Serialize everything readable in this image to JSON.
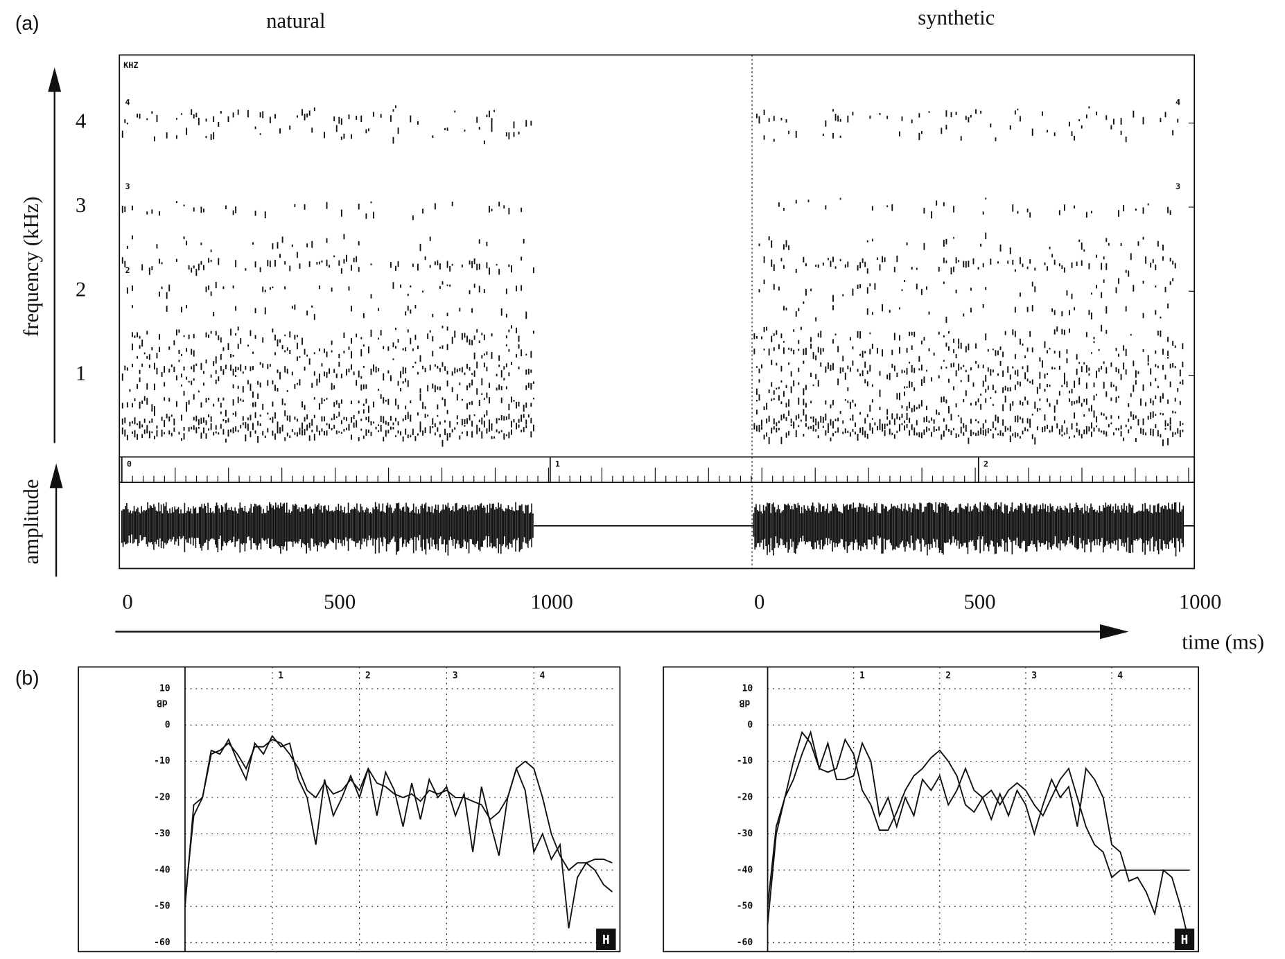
{
  "figure_a": {
    "label": "(a)",
    "panels": [
      {
        "title": "natural",
        "time_ticks": [
          0,
          500,
          1000
        ]
      },
      {
        "title": "synthetic",
        "time_ticks": [
          0,
          500,
          1000
        ]
      }
    ],
    "frequency_axis_label": "frequency (kHz)",
    "frequency_ticks": [
      1,
      2,
      3,
      4
    ],
    "amplitude_axis_label": "amplitude",
    "time_axis_label": "time (ms)",
    "spectrogram_unit": "KHZ",
    "inner_freq_marks_left": [
      4,
      3,
      2
    ],
    "inner_freq_marks_right": [
      4,
      3
    ],
    "ruler_ticks": [
      0,
      1,
      2
    ]
  },
  "figure_b": {
    "label": "(b)"
  },
  "chart_data": [
    {
      "type": "line",
      "y_label": "dB",
      "marker": "H",
      "xlim": [
        0,
        4.94
      ],
      "ylim": [
        -62,
        16
      ],
      "xticks": [
        1,
        2,
        3,
        4
      ],
      "yticks": [
        10,
        0,
        -10,
        -20,
        -30,
        -40,
        -50,
        -60
      ],
      "grid": true,
      "x": [
        0,
        0.1,
        0.2,
        0.3,
        0.4,
        0.5,
        0.6,
        0.7,
        0.8,
        0.9,
        1.0,
        1.1,
        1.2,
        1.3,
        1.4,
        1.5,
        1.6,
        1.7,
        1.8,
        1.9,
        2.0,
        2.1,
        2.2,
        2.3,
        2.4,
        2.5,
        2.6,
        2.7,
        2.8,
        2.9,
        3.0,
        3.1,
        3.2,
        3.3,
        3.4,
        3.5,
        3.6,
        3.7,
        3.8,
        3.9,
        4.0,
        4.1,
        4.2,
        4.3,
        4.4,
        4.5,
        4.6,
        4.7,
        4.8,
        4.9
      ],
      "series": [
        {
          "color": "#111111",
          "values": [
            -50,
            -22,
            -20,
            -7,
            -8,
            -4,
            -10,
            -15,
            -5,
            -8,
            -3,
            -6,
            -5,
            -15,
            -20,
            -33,
            -15,
            -25,
            -20,
            -14,
            -20,
            -12,
            -25,
            -13,
            -18,
            -28,
            -16,
            -26,
            -15,
            -20,
            -17,
            -25,
            -19,
            -35,
            -17,
            -27,
            -36,
            -20,
            -12,
            -18,
            -35,
            -30,
            -37,
            -33,
            -56,
            -42,
            -38,
            -40,
            -44,
            -46
          ]
        },
        {
          "color": "#111111",
          "values": [
            -48,
            -25,
            -20,
            -8,
            -7,
            -5,
            -8,
            -12,
            -6,
            -6,
            -4,
            -5,
            -8,
            -12,
            -18,
            -20,
            -16,
            -19,
            -18,
            -15,
            -18,
            -12,
            -16,
            -17,
            -19,
            -20,
            -19,
            -21,
            -18,
            -19,
            -18,
            -20,
            -20,
            -21,
            -22,
            -26,
            -24,
            -20,
            -12,
            -10,
            -12,
            -20,
            -30,
            -36,
            -40,
            -38,
            -38,
            -37,
            -37,
            -38
          ]
        }
      ]
    },
    {
      "type": "line",
      "y_label": "dB",
      "marker": "H",
      "xlim": [
        0,
        4.96
      ],
      "ylim": [
        -62,
        16
      ],
      "xticks": [
        1,
        2,
        3,
        4
      ],
      "yticks": [
        10,
        0,
        -10,
        -20,
        -30,
        -40,
        -50,
        -60
      ],
      "grid": true,
      "x": [
        0,
        0.1,
        0.2,
        0.3,
        0.4,
        0.5,
        0.6,
        0.7,
        0.8,
        0.9,
        1.0,
        1.1,
        1.2,
        1.3,
        1.4,
        1.5,
        1.6,
        1.7,
        1.8,
        1.9,
        2.0,
        2.1,
        2.2,
        2.3,
        2.4,
        2.5,
        2.6,
        2.7,
        2.8,
        2.9,
        3.0,
        3.1,
        3.2,
        3.3,
        3.4,
        3.5,
        3.6,
        3.7,
        3.8,
        3.9,
        4.0,
        4.1,
        4.2,
        4.3,
        4.4,
        4.5,
        4.6,
        4.7,
        4.8,
        4.9
      ],
      "series": [
        {
          "color": "#111111",
          "values": [
            -55,
            -30,
            -20,
            -15,
            -8,
            -2,
            -12,
            -5,
            -15,
            -15,
            -14,
            -5,
            -10,
            -25,
            -20,
            -28,
            -20,
            -25,
            -15,
            -18,
            -14,
            -22,
            -18,
            -12,
            -18,
            -20,
            -26,
            -19,
            -25,
            -18,
            -22,
            -30,
            -22,
            -15,
            -20,
            -17,
            -28,
            -12,
            -15,
            -20,
            -33,
            -35,
            -43,
            -42,
            -46,
            -52,
            -40,
            -42,
            -50,
            -60
          ]
        },
        {
          "color": "#111111",
          "values": [
            -50,
            -28,
            -20,
            -10,
            -2,
            -5,
            -12,
            -13,
            -12,
            -4,
            -8,
            -18,
            -22,
            -29,
            -29,
            -24,
            -18,
            -14,
            -12,
            -9,
            -7,
            -10,
            -14,
            -22,
            -24,
            -20,
            -18,
            -22,
            -18,
            -16,
            -18,
            -22,
            -25,
            -20,
            -15,
            -12,
            -20,
            -28,
            -33,
            -35,
            -42,
            -40,
            -40,
            -40,
            -40,
            -40,
            -40,
            -40,
            -40,
            -40
          ]
        }
      ]
    }
  ]
}
